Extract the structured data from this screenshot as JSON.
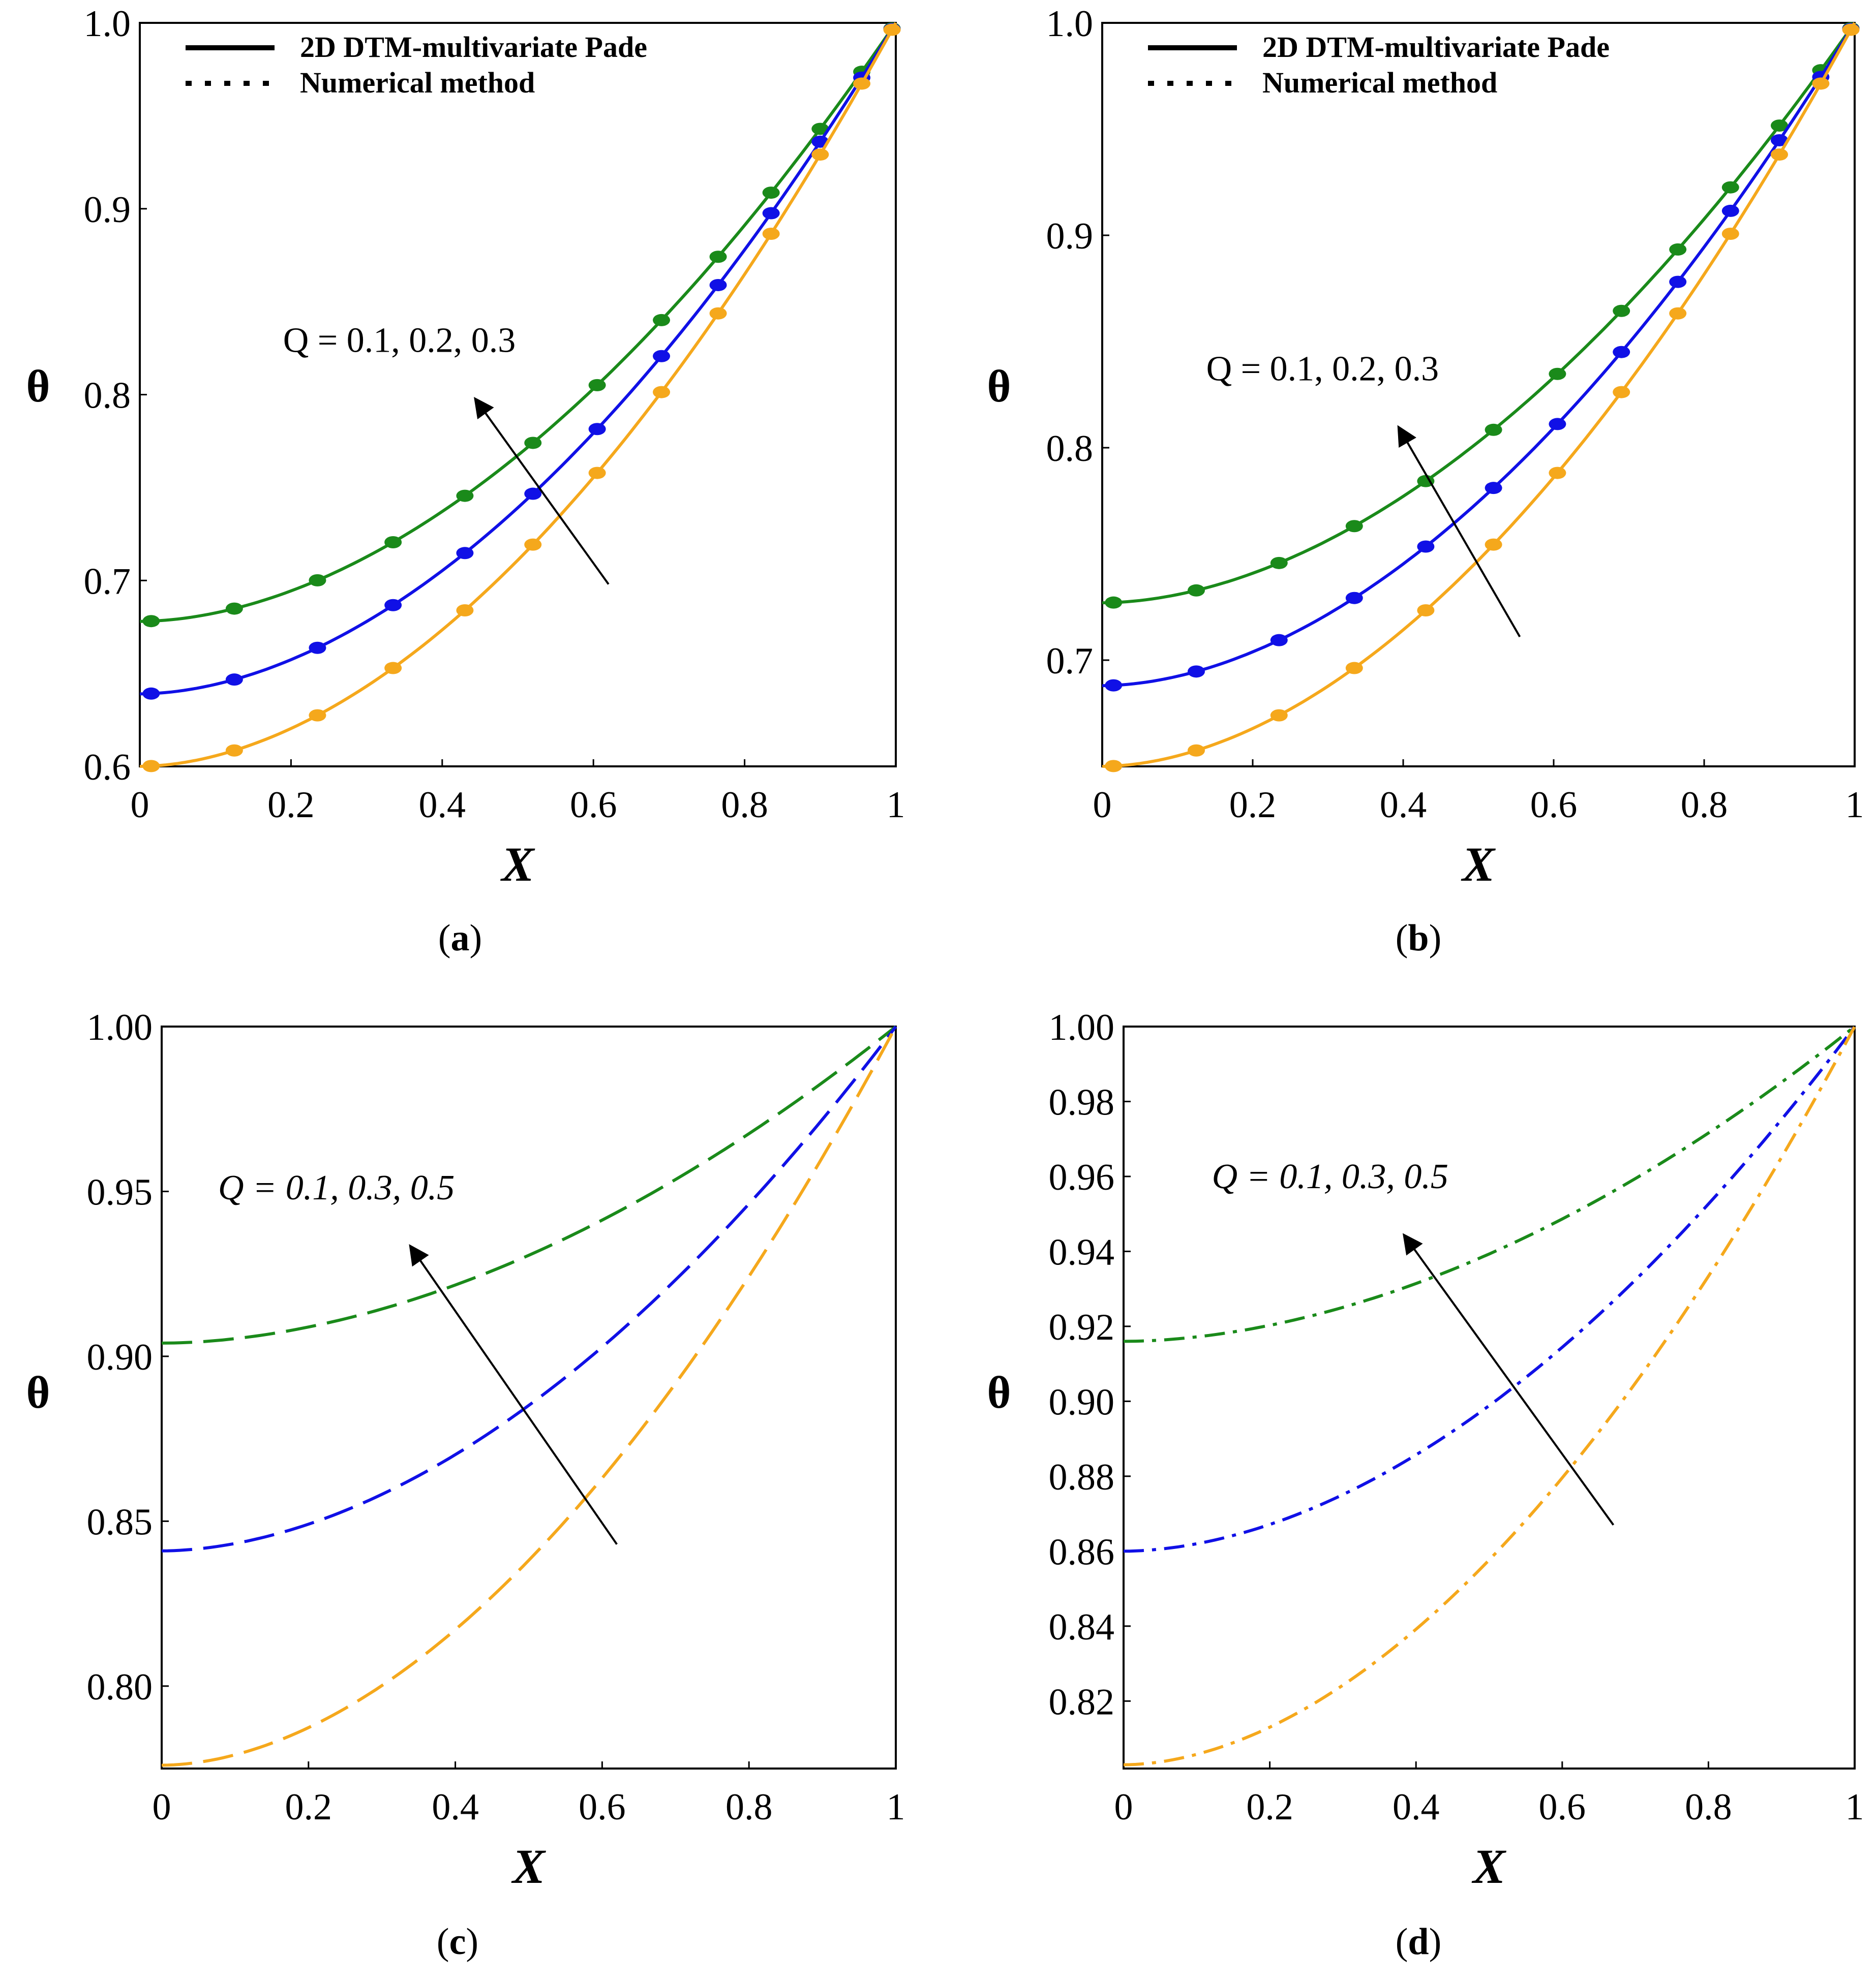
{
  "panels": [
    {
      "caption_open": "(",
      "caption_letter": "a",
      "caption_close": ")",
      "legend": [
        "2D DTM-multivariate Pade",
        "Numerical method"
      ]
    },
    {
      "caption_open": "(",
      "caption_letter": "b",
      "caption_close": ")",
      "legend": [
        "2D DTM-multivariate Pade",
        "Numerical method"
      ]
    },
    {
      "caption_open": "(",
      "caption_letter": "c",
      "caption_close": ")",
      "legend": []
    },
    {
      "caption_open": "(",
      "caption_letter": "d",
      "caption_close": ")",
      "legend": []
    }
  ],
  "colors": {
    "green": "#1a8a1a",
    "blue": "#1010e6",
    "orange": "#f5a81c",
    "axis": "#000000"
  },
  "chart_data": [
    {
      "type": "line",
      "xlabel": "X",
      "ylabel": "θ",
      "xlim": [
        0,
        1
      ],
      "ylim": [
        0.6,
        1.0
      ],
      "xticks": [
        0,
        0.2,
        0.4,
        0.6,
        0.8,
        1
      ],
      "xtick_labels": [
        "0",
        "0.2",
        "0.4",
        "0.6",
        "0.8",
        "1"
      ],
      "yticks": [
        0.6,
        0.7,
        0.8,
        0.9,
        1.0
      ],
      "ytick_labels": [
        "0.6",
        "0.7",
        "0.8",
        "0.9",
        "1.0"
      ],
      "annotation": "Q = 0.1, 0.2, 0.3",
      "arrow": {
        "from": [
          0.62,
          0.698
        ],
        "to": [
          0.445,
          0.797
        ]
      },
      "style": "solid-with-markers",
      "series": [
        {
          "name": "Q = 0.3",
          "color": "green",
          "y0": 0.678
        },
        {
          "name": "Q = 0.2",
          "color": "blue",
          "y0": 0.639
        },
        {
          "name": "Q = 0.1",
          "color": "orange",
          "y0": 0.6
        }
      ]
    },
    {
      "type": "line",
      "xlabel": "X",
      "ylabel": "θ",
      "xlim": [
        0,
        1
      ],
      "ylim": [
        0.65,
        1.0
      ],
      "xticks": [
        0,
        0.2,
        0.4,
        0.6,
        0.8,
        1
      ],
      "xtick_labels": [
        "0",
        "0.2",
        "0.4",
        "0.6",
        "0.8",
        "1"
      ],
      "yticks": [
        0.7,
        0.8,
        0.9,
        1.0
      ],
      "ytick_labels": [
        "0.7",
        "0.8",
        "0.9",
        "1.0"
      ],
      "annotation": "Q = 0.1, 0.2, 0.3",
      "arrow": {
        "from": [
          0.555,
          0.711
        ],
        "to": [
          0.395,
          0.809
        ]
      },
      "style": "solid-with-markers",
      "series": [
        {
          "name": "Q = 0.3",
          "color": "green",
          "y0": 0.727
        },
        {
          "name": "Q = 0.2",
          "color": "blue",
          "y0": 0.688
        },
        {
          "name": "Q = 0.1",
          "color": "orange",
          "y0": 0.65
        }
      ]
    },
    {
      "type": "line",
      "xlabel": "X",
      "ylabel": "θ",
      "xlim": [
        0,
        1
      ],
      "ylim": [
        0.775,
        1.0
      ],
      "xticks": [
        0,
        0.2,
        0.4,
        0.6,
        0.8,
        1
      ],
      "xtick_labels": [
        "0",
        "0.2",
        "0.4",
        "0.6",
        "0.8",
        "1"
      ],
      "yticks": [
        0.8,
        0.85,
        0.9,
        0.95,
        1.0
      ],
      "ytick_labels": [
        "0.80",
        "0.85",
        "0.90",
        "0.95",
        "1.00"
      ],
      "annotation": "Q = 0.1, 0.3, 0.5",
      "arrow": {
        "from": [
          0.62,
          0.843
        ],
        "to": [
          0.34,
          0.933
        ]
      },
      "style": "dashed",
      "series": [
        {
          "name": "Q = 0.5",
          "color": "green",
          "y0": 0.904
        },
        {
          "name": "Q = 0.3",
          "color": "blue",
          "y0": 0.841
        },
        {
          "name": "Q = 0.1",
          "color": "orange",
          "y0": 0.776
        }
      ]
    },
    {
      "type": "line",
      "xlabel": "X",
      "ylabel": "θ",
      "xlim": [
        0,
        1
      ],
      "ylim": [
        0.802,
        1.0
      ],
      "xticks": [
        0,
        0.2,
        0.4,
        0.6,
        0.8,
        1
      ],
      "xtick_labels": [
        "0",
        "0.2",
        "0.4",
        "0.6",
        "0.8",
        "1"
      ],
      "yticks": [
        0.82,
        0.84,
        0.86,
        0.88,
        0.9,
        0.92,
        0.94,
        0.96,
        0.98,
        1.0
      ],
      "ytick_labels": [
        "0.82",
        "0.84",
        "0.86",
        "0.88",
        "0.90",
        "0.92",
        "0.94",
        "0.96",
        "0.98",
        "1.00"
      ],
      "annotation": "Q = 0.1, 0.3, 0.5",
      "arrow": {
        "from": [
          0.67,
          0.867
        ],
        "to": [
          0.385,
          0.944
        ]
      },
      "style": "dashdot",
      "series": [
        {
          "name": "Q = 0.5",
          "color": "green",
          "y0": 0.916
        },
        {
          "name": "Q = 0.3",
          "color": "blue",
          "y0": 0.86
        },
        {
          "name": "Q = 0.1",
          "color": "orange",
          "y0": 0.803
        }
      ]
    }
  ]
}
